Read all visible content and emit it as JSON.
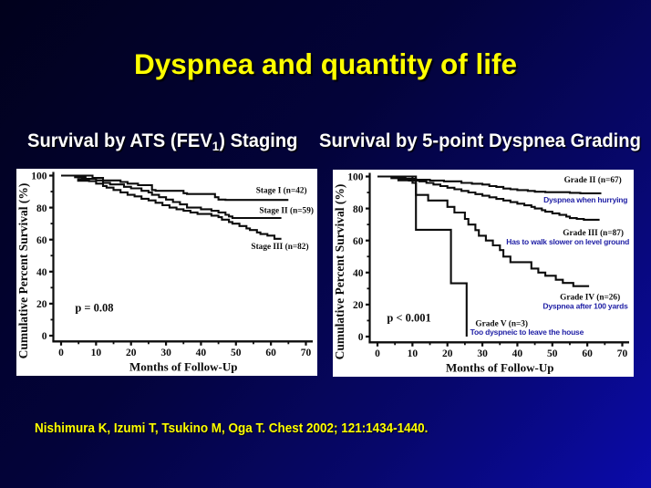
{
  "slide": {
    "title": "Dyspnea and quantity of life",
    "left_heading": {
      "prefix": "Survival by ATS (FEV",
      "sub": "1",
      "suffix": ") Staging"
    },
    "right_heading": "Survival by 5-point Dyspnea Grading",
    "citation": "Nishimura K, Izumi T, Tsukino M, Oga T. Chest 2002; 121:1434-1440."
  },
  "colors": {
    "background_top_left": "#01011c",
    "background_bottom_right": "#0b0bab",
    "title_yellow": "#ffff00",
    "heading_white": "#ffffff",
    "citation_yellow": "#ffff00",
    "chart_ink": "#0c0c0c",
    "chart_blue_label": "#2121a6",
    "panel_white": "#ffffff"
  },
  "chart_data": [
    {
      "type": "line",
      "subtype": "kaplan-meier-step",
      "title": "Survival by ATS (FEV1) Staging",
      "xlabel": "Months of Follow-Up",
      "ylabel": "Cumulative Percent Survival (%)",
      "xlim": [
        0,
        70
      ],
      "ylim": [
        0,
        100
      ],
      "xticks": [
        0,
        10,
        20,
        30,
        40,
        50,
        60,
        70
      ],
      "yticks": [
        0,
        20,
        40,
        60,
        80,
        100
      ],
      "xticks_minor": [
        5,
        15,
        25,
        35,
        45,
        55,
        65
      ],
      "yticks_minor": [
        10,
        30,
        50,
        70,
        90
      ],
      "grid": false,
      "legend_position": "labels-on-chart",
      "annotation": {
        "text": "p = 0.08",
        "x": 4,
        "y": 17.5,
        "anchor": "start"
      },
      "series": [
        {
          "name": "Stage I (n=42)",
          "end_x": 65,
          "censor_bar": {
            "x1": 4.6,
            "x2": 8.1,
            "y": 97.2
          },
          "steps": [
            [
              0,
              100
            ],
            [
              9,
              98.5
            ],
            [
              12,
              97
            ],
            [
              17,
              96
            ],
            [
              19,
              95
            ],
            [
              22,
              94
            ],
            [
              26,
              91
            ],
            [
              27,
              90.5
            ],
            [
              35,
              89
            ],
            [
              36,
              88.5
            ],
            [
              44,
              86.5
            ],
            [
              45,
              85
            ],
            [
              47,
              84.8
            ]
          ],
          "label": {
            "text": "Stage I (n=42)",
            "x": 70.3,
            "y": 91.2,
            "anchor": "end"
          }
        },
        {
          "name": "Stage II (n=59)",
          "end_x": 63,
          "steps": [
            [
              0,
              100
            ],
            [
              5,
              99
            ],
            [
              7,
              98
            ],
            [
              10,
              97
            ],
            [
              12,
              95.5
            ],
            [
              14,
              94.5
            ],
            [
              18,
              93
            ],
            [
              20,
              92
            ],
            [
              23,
              90.5
            ],
            [
              25,
              89.5
            ],
            [
              26,
              88
            ],
            [
              28,
              86.5
            ],
            [
              30,
              85
            ],
            [
              32,
              83.5
            ],
            [
              34,
              82
            ],
            [
              36,
              80
            ],
            [
              40,
              79
            ],
            [
              43,
              78
            ],
            [
              45,
              77
            ],
            [
              47,
              75.5
            ],
            [
              48,
              74.5
            ],
            [
              49,
              73.5
            ]
          ],
          "label": {
            "text": "Stage II (n=59)",
            "x": 72.2,
            "y": 78.5,
            "anchor": "end"
          }
        },
        {
          "name": "Stage III (n=82)",
          "end_x": 63,
          "steps": [
            [
              0,
              100
            ],
            [
              4,
              99
            ],
            [
              6,
              98
            ],
            [
              8,
              96.5
            ],
            [
              10,
              95
            ],
            [
              12,
              93.5
            ],
            [
              13,
              92.5
            ],
            [
              15,
              91
            ],
            [
              17,
              89.5
            ],
            [
              19,
              88
            ],
            [
              21,
              87
            ],
            [
              23,
              85.5
            ],
            [
              25,
              84.5
            ],
            [
              27,
              83
            ],
            [
              29,
              81.5
            ],
            [
              31,
              80
            ],
            [
              33,
              79
            ],
            [
              35,
              78
            ],
            [
              37,
              77
            ],
            [
              39,
              76
            ],
            [
              43,
              75
            ],
            [
              45,
              74
            ],
            [
              46,
              72.5
            ],
            [
              48,
              71
            ],
            [
              49,
              70
            ],
            [
              51,
              68.5
            ],
            [
              53,
              67
            ],
            [
              54,
              66
            ],
            [
              56,
              64.5
            ],
            [
              57,
              63.5
            ],
            [
              59,
              62.5
            ],
            [
              61,
              60.5
            ]
          ],
          "label": {
            "text": "Stage III (n=82)",
            "x": 70.8,
            "y": 56.2,
            "anchor": "end"
          }
        }
      ]
    },
    {
      "type": "line",
      "subtype": "kaplan-meier-step",
      "title": "Survival by 5-point Dyspnea Grading",
      "xlabel": "Months of Follow-Up",
      "ylabel": "Cumulative Percent Survival (%)",
      "xlim": [
        0,
        70
      ],
      "ylim": [
        0,
        100
      ],
      "xticks": [
        0,
        10,
        20,
        30,
        40,
        50,
        60,
        70
      ],
      "yticks": [
        0,
        20,
        40,
        60,
        80,
        100
      ],
      "xticks_minor": [
        5,
        15,
        25,
        35,
        45,
        55,
        65
      ],
      "yticks_minor": [
        10,
        30,
        50,
        70,
        90
      ],
      "grid": false,
      "legend_position": "labels-on-chart",
      "annotation": {
        "text": "p < 0.001",
        "x": 2.7,
        "y": 11.8,
        "anchor": "start"
      },
      "series": [
        {
          "name": "Grade II (n=67)",
          "end_x": 64,
          "censor_bar": {
            "x1": 5.7,
            "x2": 11.2,
            "y": 98.0
          },
          "steps": [
            [
              0,
              100
            ],
            [
              5,
              99.5
            ],
            [
              8,
              98.5
            ],
            [
              11,
              98
            ],
            [
              15,
              97.5
            ],
            [
              19,
              97
            ],
            [
              24,
              96
            ],
            [
              27,
              95.5
            ],
            [
              30,
              95
            ],
            [
              32,
              94
            ],
            [
              34,
              93.5
            ],
            [
              36,
              92.5
            ],
            [
              38,
              92
            ],
            [
              40,
              91.5
            ],
            [
              43,
              91
            ],
            [
              45,
              90.5
            ],
            [
              48,
              90.2
            ],
            [
              55,
              89.8
            ],
            [
              58,
              89.5
            ]
          ],
          "label": {
            "text": "Grade II (n=67)",
            "x": 69.8,
            "y": 98.2,
            "anchor": "end"
          },
          "sublabel": {
            "text": "Dyspnea when hurrying",
            "x": 71.5,
            "y": 85.5,
            "anchor": "end"
          }
        },
        {
          "name": "Grade III (n=87)",
          "end_x": 63.5,
          "steps": [
            [
              0,
              100
            ],
            [
              4,
              99
            ],
            [
              6,
              98.5
            ],
            [
              9,
              97.5
            ],
            [
              12,
              97
            ],
            [
              14,
              96
            ],
            [
              16,
              95
            ],
            [
              18,
              94
            ],
            [
              20,
              93
            ],
            [
              22,
              92
            ],
            [
              24,
              91
            ],
            [
              26,
              90
            ],
            [
              28,
              89
            ],
            [
              30,
              88
            ],
            [
              32,
              87
            ],
            [
              34,
              86
            ],
            [
              36,
              85
            ],
            [
              38,
              84
            ],
            [
              40,
              83
            ],
            [
              42,
              82
            ],
            [
              44,
              81
            ],
            [
              45,
              80
            ],
            [
              47,
              79
            ],
            [
              48,
              78
            ],
            [
              50,
              77
            ],
            [
              52,
              76
            ],
            [
              54,
              75
            ],
            [
              55,
              74
            ],
            [
              57,
              73.5
            ],
            [
              59,
              73
            ]
          ],
          "label": {
            "text": "Grade III (n=87)",
            "x": 70.4,
            "y": 65.3,
            "anchor": "end"
          },
          "sublabel": {
            "text": "Has to walk slower on level ground",
            "x": 72,
            "y": 59.2,
            "anchor": "end"
          }
        },
        {
          "name": "Grade IV (n=26)",
          "end_x": 60.5,
          "steps": [
            [
              0,
              100
            ],
            [
              10,
              96
            ],
            [
              11,
              88.5
            ],
            [
              14.5,
              85
            ],
            [
              20,
              81
            ],
            [
              22,
              77.5
            ],
            [
              25,
              73.5
            ],
            [
              26,
              70
            ],
            [
              28,
              66.5
            ],
            [
              29,
              63
            ],
            [
              31,
              60
            ],
            [
              33,
              57
            ],
            [
              35,
              54
            ],
            [
              36,
              50
            ],
            [
              38,
              46.5
            ],
            [
              44,
              42.5
            ],
            [
              46,
              40
            ],
            [
              48,
              38
            ],
            [
              51,
              35.5
            ],
            [
              53,
              33.5
            ],
            [
              56,
              31.5
            ]
          ],
          "label": {
            "text": "Grade IV (n=26)",
            "x": 69.4,
            "y": 25.1,
            "anchor": "end"
          },
          "sublabel": {
            "text": "Dyspnea after 100 yards",
            "x": 71.6,
            "y": 19,
            "anchor": "end"
          }
        },
        {
          "name": "Grade V (n=3)",
          "end_x": 25.5,
          "steps": [
            [
              0,
              100
            ],
            [
              11,
              66.7
            ],
            [
              21,
              33.3
            ],
            [
              25.5,
              0
            ]
          ],
          "label": {
            "text": "Grade V (n=3)",
            "x": 28,
            "y": 8.5,
            "anchor": "start"
          },
          "sublabel": {
            "text": "Too dyspneic to leave the house",
            "x": 26.5,
            "y": 2.9,
            "anchor": "start"
          }
        }
      ]
    }
  ]
}
